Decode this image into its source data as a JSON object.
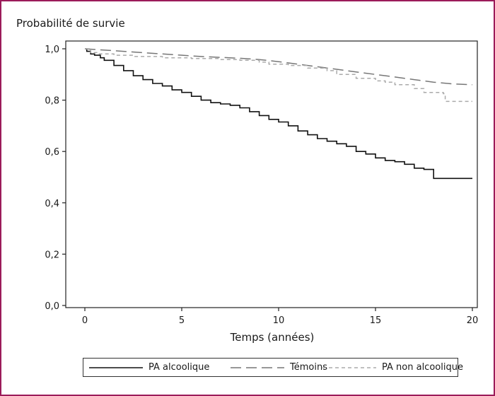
{
  "chart_data": {
    "type": "line",
    "ylabel": "Probabilité de survie",
    "xlabel": "Temps (années)",
    "xlim": [
      0,
      20
    ],
    "ylim": [
      0,
      1
    ],
    "x_ticks": [
      "0",
      "5",
      "10",
      "15",
      "20"
    ],
    "y_ticks": [
      "0,0",
      "0,2",
      "0,4",
      "0,6",
      "0,8",
      "1,0"
    ],
    "grid": false,
    "legend_position": "bottom",
    "series": [
      {
        "name": "PA alcoolique",
        "style": "solid",
        "color": "#111111",
        "x": [
          0,
          0.1,
          0.3,
          0.5,
          0.8,
          1,
          1.5,
          2,
          2.5,
          3,
          3.5,
          4,
          4.5,
          5,
          5.5,
          6,
          6.5,
          7,
          7.5,
          8,
          8.5,
          9,
          9.5,
          10,
          10.5,
          11,
          11.5,
          12,
          12.5,
          13,
          13.5,
          14,
          14.5,
          15,
          15.5,
          16,
          16.5,
          17,
          17.5,
          18,
          18.5,
          19,
          19.5,
          20
        ],
        "values": [
          1.0,
          0.99,
          0.98,
          0.975,
          0.965,
          0.955,
          0.935,
          0.915,
          0.895,
          0.88,
          0.865,
          0.855,
          0.84,
          0.83,
          0.815,
          0.8,
          0.79,
          0.785,
          0.78,
          0.77,
          0.755,
          0.74,
          0.725,
          0.715,
          0.7,
          0.68,
          0.665,
          0.65,
          0.64,
          0.63,
          0.62,
          0.6,
          0.59,
          0.575,
          0.565,
          0.56,
          0.55,
          0.535,
          0.53,
          0.495,
          0.495,
          0.495,
          0.495,
          0.495
        ]
      },
      {
        "name": "Témoins",
        "style": "long-dash",
        "color": "#777777",
        "x": [
          0,
          2,
          4,
          6,
          8,
          9,
          10,
          11,
          12,
          13,
          14,
          15,
          16,
          17,
          18,
          19,
          20
        ],
        "values": [
          1.0,
          0.99,
          0.98,
          0.97,
          0.963,
          0.958,
          0.95,
          0.94,
          0.93,
          0.92,
          0.91,
          0.9,
          0.89,
          0.88,
          0.87,
          0.863,
          0.86
        ]
      },
      {
        "name": "PA non alcoolique",
        "style": "short-dash",
        "color": "#aaaaaa",
        "x": [
          0,
          0.3,
          0.7,
          1.5,
          2.5,
          4,
          5.5,
          7,
          8,
          9,
          9.5,
          10.5,
          11.5,
          12.5,
          13,
          14,
          15,
          15.5,
          16,
          17,
          17.5,
          18.5,
          18.6,
          20
        ],
        "values": [
          1.0,
          0.985,
          0.98,
          0.975,
          0.97,
          0.965,
          0.962,
          0.958,
          0.955,
          0.948,
          0.94,
          0.935,
          0.925,
          0.915,
          0.9,
          0.885,
          0.875,
          0.87,
          0.86,
          0.845,
          0.83,
          0.825,
          0.795,
          0.795
        ]
      }
    ]
  }
}
